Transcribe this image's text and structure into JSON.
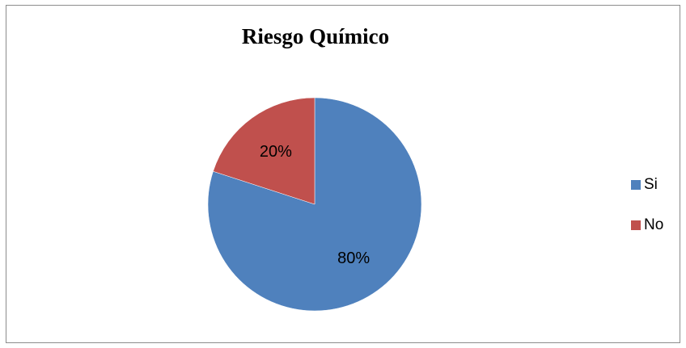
{
  "chart_data": {
    "type": "pie",
    "title": "Riesgo Químico",
    "categories": [
      "Si",
      "No"
    ],
    "values": [
      80,
      20
    ],
    "data_labels": [
      "80%",
      "20%"
    ],
    "colors": [
      "#4f81bd",
      "#c0504d"
    ],
    "legend_position": "right",
    "start_angle_deg": 0,
    "direction": "clockwise"
  }
}
